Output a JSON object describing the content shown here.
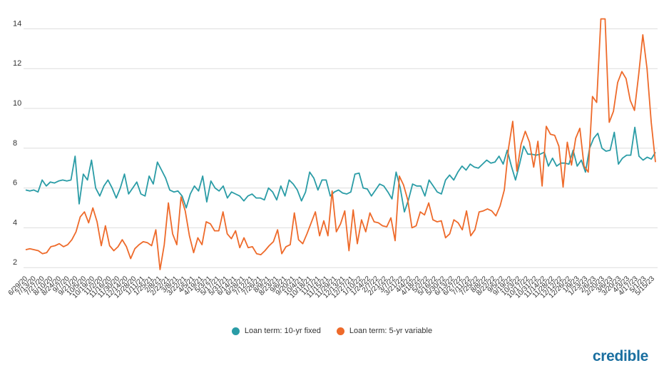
{
  "colors": {
    "series_a": "#2a9ca6",
    "series_b": "#ee6a2a",
    "grid": "#dddddd",
    "brand": "#1a6fa0"
  },
  "brand": {
    "name": "credible"
  },
  "chart_data": {
    "type": "line",
    "title": "",
    "xlabel": "",
    "ylabel": "",
    "ylim": [
      1,
      15
    ],
    "yticks": [
      2,
      4,
      6,
      8,
      10,
      12,
      14
    ],
    "grid": true,
    "legend_position": "bottom",
    "x_tick_labels": [
      "6/29/20",
      "7/13/20",
      "7/27/20",
      "8/10/20",
      "8/24/20",
      "9/7/20",
      "9/21/20",
      "10/5/20",
      "10/19/20",
      "11/2/20",
      "11/16/20",
      "11/30/20",
      "12/14/20",
      "12/28/20",
      "1/11/21",
      "1/25/21",
      "2/8/21",
      "2/22/21",
      "3/8/21",
      "3/22/21",
      "4/5/21",
      "4/19/21",
      "5/3/21",
      "5/17/21",
      "5/31/21",
      "6/14/21",
      "6/28/21",
      "7/12/21",
      "7/26/21",
      "8/9/21",
      "8/23/21",
      "9/6/21",
      "9/20/21",
      "10/4/21",
      "10/18/21",
      "11/1/21",
      "11/15/21",
      "11/29/21",
      "12/13/21",
      "12/27/21",
      "1/10/22",
      "1/24/22",
      "2/7/22",
      "2/21/22",
      "3/7/22",
      "3/21/22",
      "4/4/22",
      "4/18/22",
      "5/2/22",
      "5/16/22",
      "5/30/22",
      "6/13/22",
      "6/27/22",
      "7/11/22",
      "7/25/22",
      "8/8/22",
      "8/22/22",
      "9/5/22",
      "9/19/22",
      "10/3/22",
      "10/17/22",
      "10/31/22",
      "11/14/22",
      "11/28/22",
      "12/12/22",
      "12/26/22",
      "1/9/23",
      "1/23/23",
      "2/6/23",
      "2/20/23",
      "3/6/23",
      "3/20/23",
      "4/3/23",
      "4/17/23",
      "5/1/23",
      "5/15/23"
    ],
    "series": [
      {
        "name": "Loan term: 10-yr fixed",
        "values": [
          5.9,
          5.85,
          5.9,
          5.8,
          6.4,
          6.1,
          6.3,
          6.25,
          6.35,
          6.4,
          6.35,
          6.4,
          7.6,
          5.2,
          6.7,
          6.4,
          7.4,
          6.0,
          5.6,
          6.1,
          6.4,
          6.0,
          5.5,
          6.0,
          6.7,
          5.7,
          6.0,
          6.3,
          5.7,
          5.6,
          6.6,
          6.2,
          7.3,
          6.9,
          6.5,
          5.9,
          5.8,
          5.85,
          5.6,
          5.0,
          5.7,
          6.1,
          5.85,
          6.6,
          5.3,
          6.35,
          6.0,
          5.85,
          6.1,
          5.5,
          5.8,
          5.7,
          5.6,
          5.35,
          5.6,
          5.7,
          5.5,
          5.5,
          5.4,
          6.0,
          5.8,
          5.4,
          6.1,
          5.6,
          6.4,
          6.2,
          5.9,
          5.35,
          5.8,
          6.8,
          6.5,
          5.9,
          6.4,
          6.4,
          5.6,
          5.8,
          5.9,
          5.75,
          5.7,
          5.8,
          6.7,
          6.75,
          6.0,
          5.95,
          5.6,
          5.9,
          6.2,
          6.1,
          5.8,
          5.45,
          6.8,
          6.0,
          4.8,
          5.4,
          6.2,
          6.1,
          6.1,
          5.6,
          6.4,
          6.1,
          5.8,
          5.7,
          6.4,
          6.65,
          6.4,
          6.8,
          7.1,
          6.9,
          7.2,
          7.05,
          7.0,
          7.2,
          7.4,
          7.25,
          7.3,
          7.6,
          7.2,
          7.9,
          7.1,
          6.4,
          7.2,
          8.1,
          7.7,
          7.7,
          7.65,
          7.7,
          7.8,
          7.1,
          7.5,
          7.1,
          7.25,
          7.25,
          7.2,
          7.9,
          7.1,
          7.4,
          6.8,
          8.0,
          8.5,
          8.75,
          8.0,
          7.85,
          7.9,
          8.8,
          7.2,
          7.5,
          7.65,
          7.65,
          9.05,
          7.6,
          7.4,
          7.55,
          7.45,
          7.8
        ]
      },
      {
        "name": "Loan term: 5-yr variable",
        "values": [
          2.9,
          2.95,
          2.9,
          2.85,
          2.7,
          2.75,
          3.05,
          3.1,
          3.2,
          3.05,
          3.15,
          3.4,
          3.8,
          4.55,
          4.8,
          4.25,
          5.0,
          4.3,
          3.1,
          4.1,
          3.1,
          2.85,
          3.05,
          3.4,
          3.05,
          2.45,
          2.95,
          3.15,
          3.3,
          3.25,
          3.1,
          3.9,
          1.9,
          3.15,
          5.25,
          3.7,
          3.15,
          5.55,
          4.85,
          3.6,
          2.75,
          3.5,
          3.15,
          4.3,
          4.2,
          3.85,
          3.85,
          4.8,
          3.7,
          3.45,
          3.85,
          3.0,
          3.5,
          3.0,
          3.05,
          2.7,
          2.65,
          2.85,
          3.1,
          3.3,
          3.9,
          2.7,
          3.05,
          3.15,
          4.75,
          3.4,
          3.2,
          3.7,
          4.25,
          4.8,
          3.6,
          4.35,
          3.6,
          5.85,
          3.8,
          4.2,
          4.85,
          2.85,
          4.9,
          3.2,
          4.4,
          3.8,
          4.75,
          4.3,
          4.25,
          4.1,
          4.05,
          4.5,
          3.35,
          6.6,
          6.15,
          5.4,
          4.0,
          4.1,
          4.8,
          4.65,
          5.25,
          4.4,
          4.3,
          4.35,
          3.5,
          3.7,
          4.4,
          4.25,
          3.9,
          4.85,
          3.6,
          3.9,
          4.8,
          4.85,
          4.95,
          4.85,
          4.6,
          5.1,
          5.9,
          8.0,
          9.35,
          6.85,
          8.2,
          8.85,
          8.3,
          7.05,
          8.35,
          6.1,
          9.1,
          8.7,
          8.65,
          8.1,
          6.05,
          8.3,
          7.15,
          8.5,
          9.0,
          7.1,
          6.8,
          10.6,
          10.3,
          14.5,
          14.5,
          9.3,
          9.85,
          11.3,
          11.85,
          11.5,
          10.4,
          9.9,
          11.7,
          13.7,
          12.0,
          9.3,
          7.3
        ]
      }
    ]
  }
}
